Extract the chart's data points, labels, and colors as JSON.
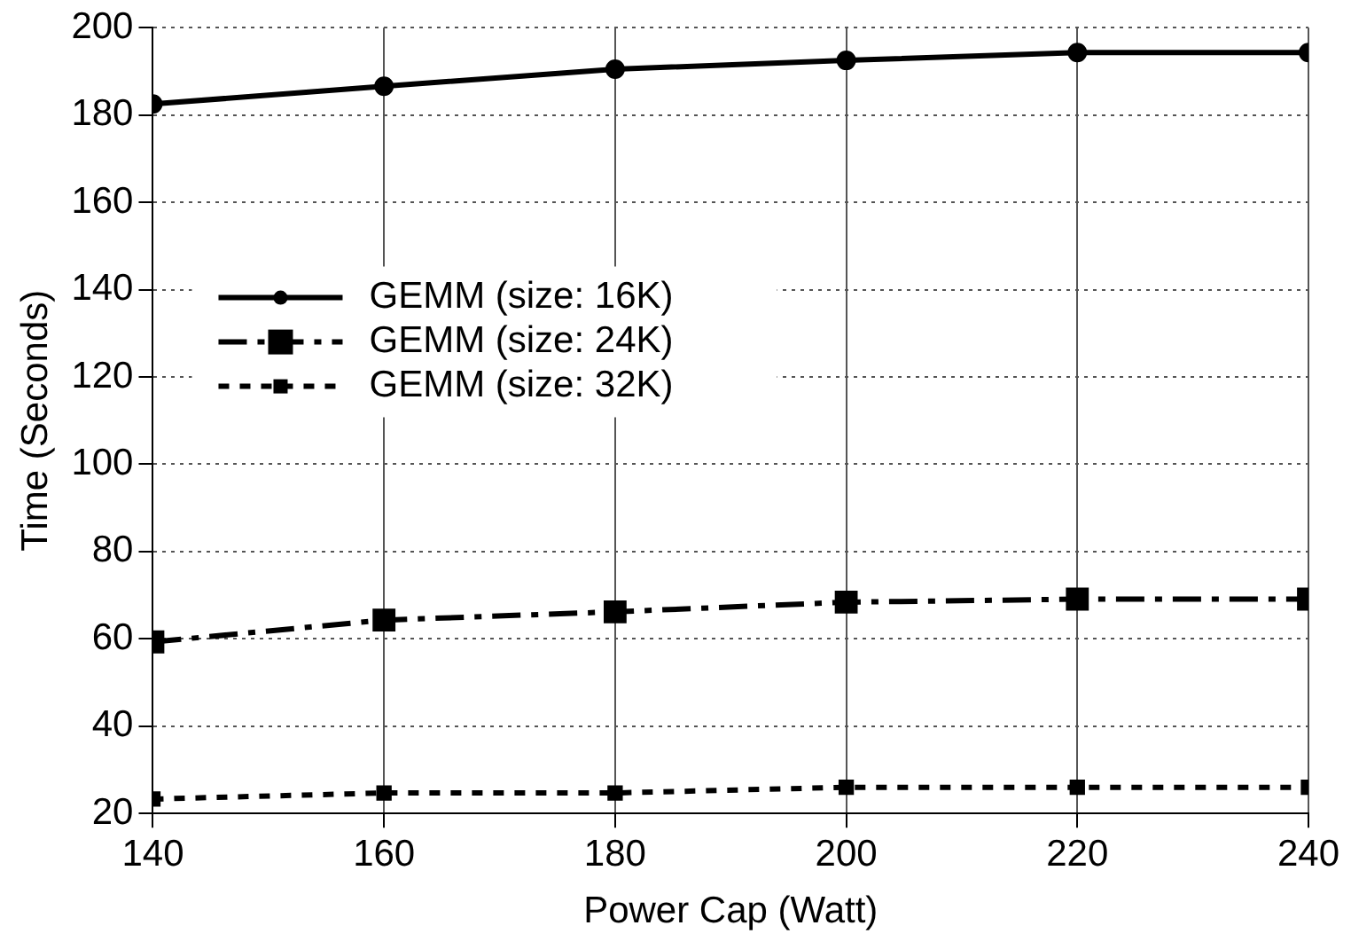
{
  "chart_data": {
    "type": "line",
    "xlabel": "Power Cap (Watt)",
    "ylabel": "Time (Seconds)",
    "x": [
      140,
      160,
      180,
      200,
      220,
      240
    ],
    "series": [
      {
        "name": "GEMM (size: 16K)",
        "color": "#000000",
        "marker": "circle",
        "line_style": "solid",
        "values": [
          182.5,
          186.6,
          190.5,
          192.5,
          194.3,
          194.3
        ]
      },
      {
        "name": "GEMM (size: 24K)",
        "color": "#000000",
        "marker": "square",
        "line_style": "dashed",
        "values": [
          59.3,
          64.3,
          66.2,
          68.4,
          69.1,
          69.1
        ]
      },
      {
        "name": "GEMM (size: 32K)",
        "color": "#000000",
        "marker": "square",
        "line_style": "dotted",
        "values": [
          23.3,
          24.7,
          24.7,
          26.0,
          26.0,
          26.0
        ]
      }
    ],
    "xlim": [
      140,
      240
    ],
    "xticks": [
      140,
      160,
      180,
      200,
      220,
      240
    ],
    "ylim": [
      20,
      200
    ],
    "yticks": [
      20,
      40,
      60,
      80,
      100,
      120,
      140,
      160,
      180,
      200
    ],
    "grid": true,
    "legend": "left"
  }
}
